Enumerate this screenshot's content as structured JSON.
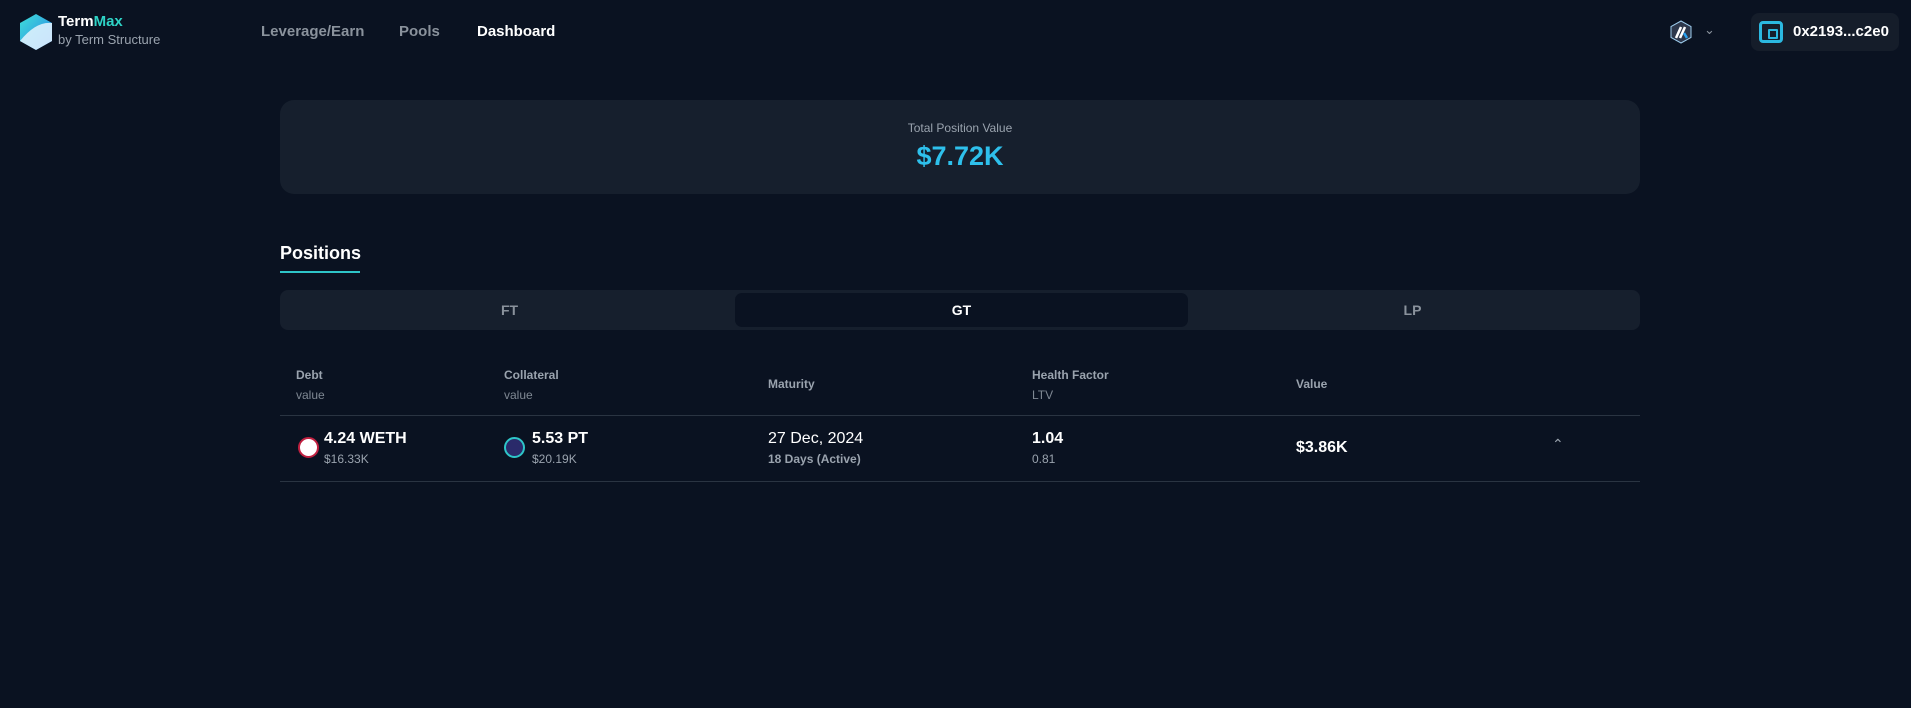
{
  "header": {
    "brand": "Term",
    "brand_accent": "Max",
    "brand_sub": "by Term Structure",
    "nav": [
      "Leverage/Earn",
      "Pools",
      "Dashboard"
    ],
    "active_nav": "Dashboard",
    "wallet": "0x2193...c2e0",
    "network_icon": "arbitrum-icon"
  },
  "summary": {
    "label": "Total Position Value",
    "value": "$7.72K"
  },
  "positions": {
    "title": "Positions",
    "tabs": [
      "FT",
      "GT",
      "LP"
    ],
    "active_tab": "GT",
    "columns": [
      {
        "title": "Debt",
        "sub": "value"
      },
      {
        "title": "Collateral",
        "sub": "value"
      },
      {
        "title": "Maturity",
        "sub": ""
      },
      {
        "title": "Health Factor",
        "sub": "LTV"
      },
      {
        "title": "Value",
        "sub": ""
      }
    ],
    "rows": [
      {
        "debt": "4.24 WETH",
        "debt_value": "$16.33K",
        "debt_icon_label": "WETH",
        "collateral": "5.53 PT",
        "collateral_value": "$20.19K",
        "maturity": "27 Dec, 2024",
        "maturity_sub": "18 Days (Active)",
        "health": "1.04",
        "ltv": "0.81",
        "value": "$3.86K"
      }
    ]
  },
  "colors": {
    "bg": "#0a1221",
    "card": "#161f2d",
    "accent": "#2ec0ec"
  }
}
